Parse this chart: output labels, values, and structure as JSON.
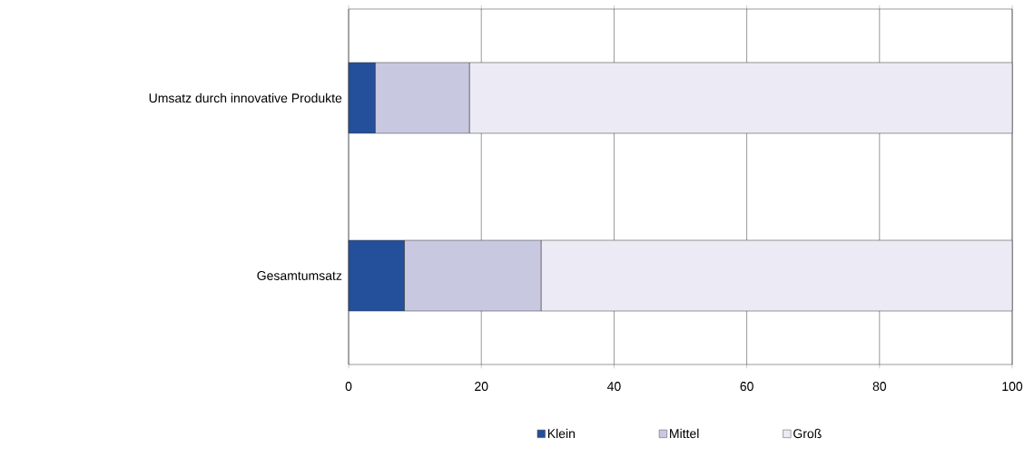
{
  "chart_data": {
    "type": "bar",
    "orientation": "horizontal",
    "stacked": true,
    "categories": [
      "Umsatz durch innovative Produkte",
      "Gesamtumsatz"
    ],
    "series": [
      {
        "name": "Klein",
        "color": "#234f9b",
        "values": [
          4.0,
          8.4
        ]
      },
      {
        "name": "Mittel",
        "color": "#c8c8e0",
        "values": [
          14.2,
          20.6
        ]
      },
      {
        "name": "Groß",
        "color": "#ecebf5",
        "values": [
          81.8,
          71.0
        ]
      }
    ],
    "xlim": [
      0,
      100
    ],
    "xticks": [
      0,
      20,
      40,
      60,
      80,
      100
    ],
    "grid": "x",
    "legend": "bottom"
  }
}
